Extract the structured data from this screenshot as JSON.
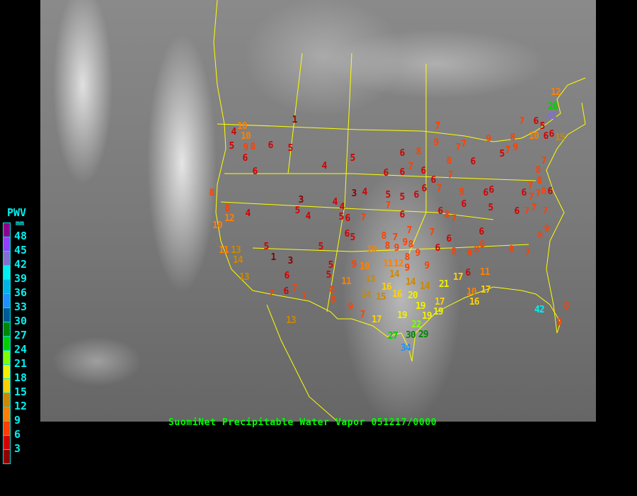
{
  "legend": {
    "title": "PWV",
    "unit": "mm",
    "labels": [
      "48",
      "45",
      "42",
      "39",
      "36",
      "33",
      "30",
      "27",
      "24",
      "21",
      "18",
      "15",
      "12",
      "9",
      "6",
      "3"
    ],
    "colors": [
      "#900090",
      "#9040ff",
      "#8070d0",
      "#00f0f0",
      "#00b4e8",
      "#1e90ff",
      "#005a9a",
      "#008800",
      "#00d000",
      "#80ff00",
      "#f0f000",
      "#ffd000",
      "#cc8800",
      "#ff8000",
      "#ff4000",
      "#d40000",
      "#8b0000"
    ]
  },
  "caption": "SuomiNet Precipitable Water Vapor 051217/0000",
  "boundary_color": "#ffff00",
  "stations": [
    1,
    10,
    10,
    4,
    9,
    5,
    8,
    6,
    6,
    5,
    6,
    4,
    5,
    8,
    8,
    12,
    4,
    3,
    5,
    4,
    3,
    4,
    4,
    4,
    5,
    6,
    6,
    5,
    10,
    11,
    13,
    14,
    13,
    5,
    1,
    3,
    6,
    6,
    7,
    7,
    7,
    5,
    5,
    5,
    8,
    8,
    9,
    7,
    13,
    7,
    10,
    9,
    10,
    13,
    11,
    14,
    15,
    16,
    16,
    19,
    17,
    7,
    6,
    7,
    7,
    8,
    8,
    9,
    9,
    8,
    9,
    8,
    12,
    11,
    9,
    9,
    14,
    14,
    20,
    14,
    19,
    19,
    19,
    17,
    21,
    17,
    22,
    30,
    29,
    27,
    34,
    10,
    16,
    17,
    11,
    5,
    5,
    6,
    6,
    7,
    6,
    6,
    7,
    6,
    6,
    7,
    6,
    8,
    9,
    7,
    7,
    7,
    6,
    8,
    9,
    8,
    9,
    7,
    5,
    6,
    5,
    9,
    6,
    6,
    7,
    8,
    7,
    6,
    6,
    8,
    6,
    6,
    9,
    8,
    8,
    6,
    6,
    8,
    7,
    7,
    9,
    8,
    7,
    7,
    6,
    7,
    7,
    8,
    8,
    7,
    8,
    7,
    6,
    7,
    6,
    5,
    6,
    6,
    15,
    10,
    12,
    26,
    45,
    42,
    8,
    9
  ]
}
